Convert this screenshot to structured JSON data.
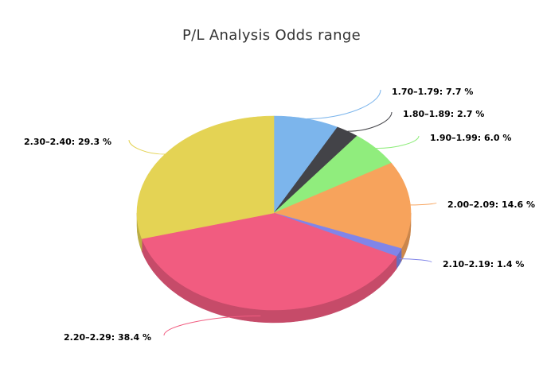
{
  "chart_data": {
    "type": "pie",
    "title": "P/L Analysis Odds range",
    "slices": [
      {
        "label": "1.70–1.79",
        "value": 7.7,
        "display": "1.70–1.79: 7.7 %",
        "color": "#7cb5ec"
      },
      {
        "label": "1.80–1.89",
        "value": 2.7,
        "display": "1.80–1.89: 2.7 %",
        "color": "#434348"
      },
      {
        "label": "1.90–1.99",
        "value": 6.0,
        "display": "1.90–1.99: 6.0 %",
        "color": "#90ed7d"
      },
      {
        "label": "2.00–2.09",
        "value": 14.6,
        "display": "2.00–2.09: 14.6 %",
        "color": "#f7a35c"
      },
      {
        "label": "2.10–2.19",
        "value": 1.4,
        "display": "2.10–2.19: 1.4 %",
        "color": "#8085e9"
      },
      {
        "label": "2.20–2.29",
        "value": 38.4,
        "display": "2.20–2.29: 38.4 %",
        "color": "#f15c80"
      },
      {
        "label": "2.30–2.40",
        "value": 29.3,
        "display": "2.30–2.40: 29.3 %",
        "color": "#e4d354"
      }
    ],
    "start_angle": "12 o'clock",
    "direction": "clockwise",
    "style": "3d"
  }
}
